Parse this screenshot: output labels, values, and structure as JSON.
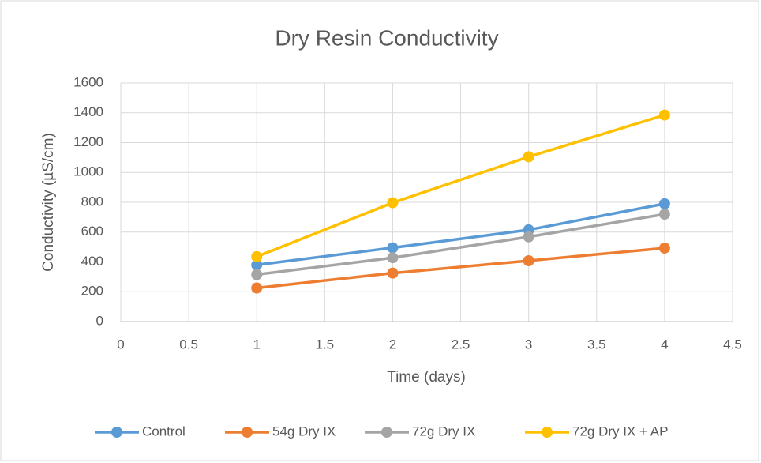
{
  "chart_data": {
    "type": "line",
    "title": "Dry Resin Conductivity",
    "x_label": "Time (days)",
    "y_label": "Conductivity (µS/cm)",
    "x": [
      1,
      2,
      3,
      4
    ],
    "series": [
      {
        "name": "Control",
        "color": "#5b9bd5",
        "values": [
          380,
          495,
          615,
          790
        ]
      },
      {
        "name": "54g Dry IX",
        "color": "#ed7d31",
        "values": [
          225,
          325,
          408,
          493
        ]
      },
      {
        "name": "72g Dry IX",
        "color": "#a5a5a5",
        "values": [
          315,
          428,
          568,
          720
        ]
      },
      {
        "name": "72g Dry IX + AP",
        "color": "#ffc000",
        "values": [
          435,
          797,
          1105,
          1385
        ]
      }
    ],
    "xlim": [
      0,
      4.5
    ],
    "xticks": [
      0,
      0.5,
      1,
      1.5,
      2,
      2.5,
      3,
      3.5,
      4,
      4.5
    ],
    "ylim": [
      0,
      1600
    ],
    "yticks": [
      0,
      200,
      400,
      600,
      800,
      1000,
      1200,
      1400,
      1600
    ],
    "grid": true,
    "legend": "bottom"
  }
}
